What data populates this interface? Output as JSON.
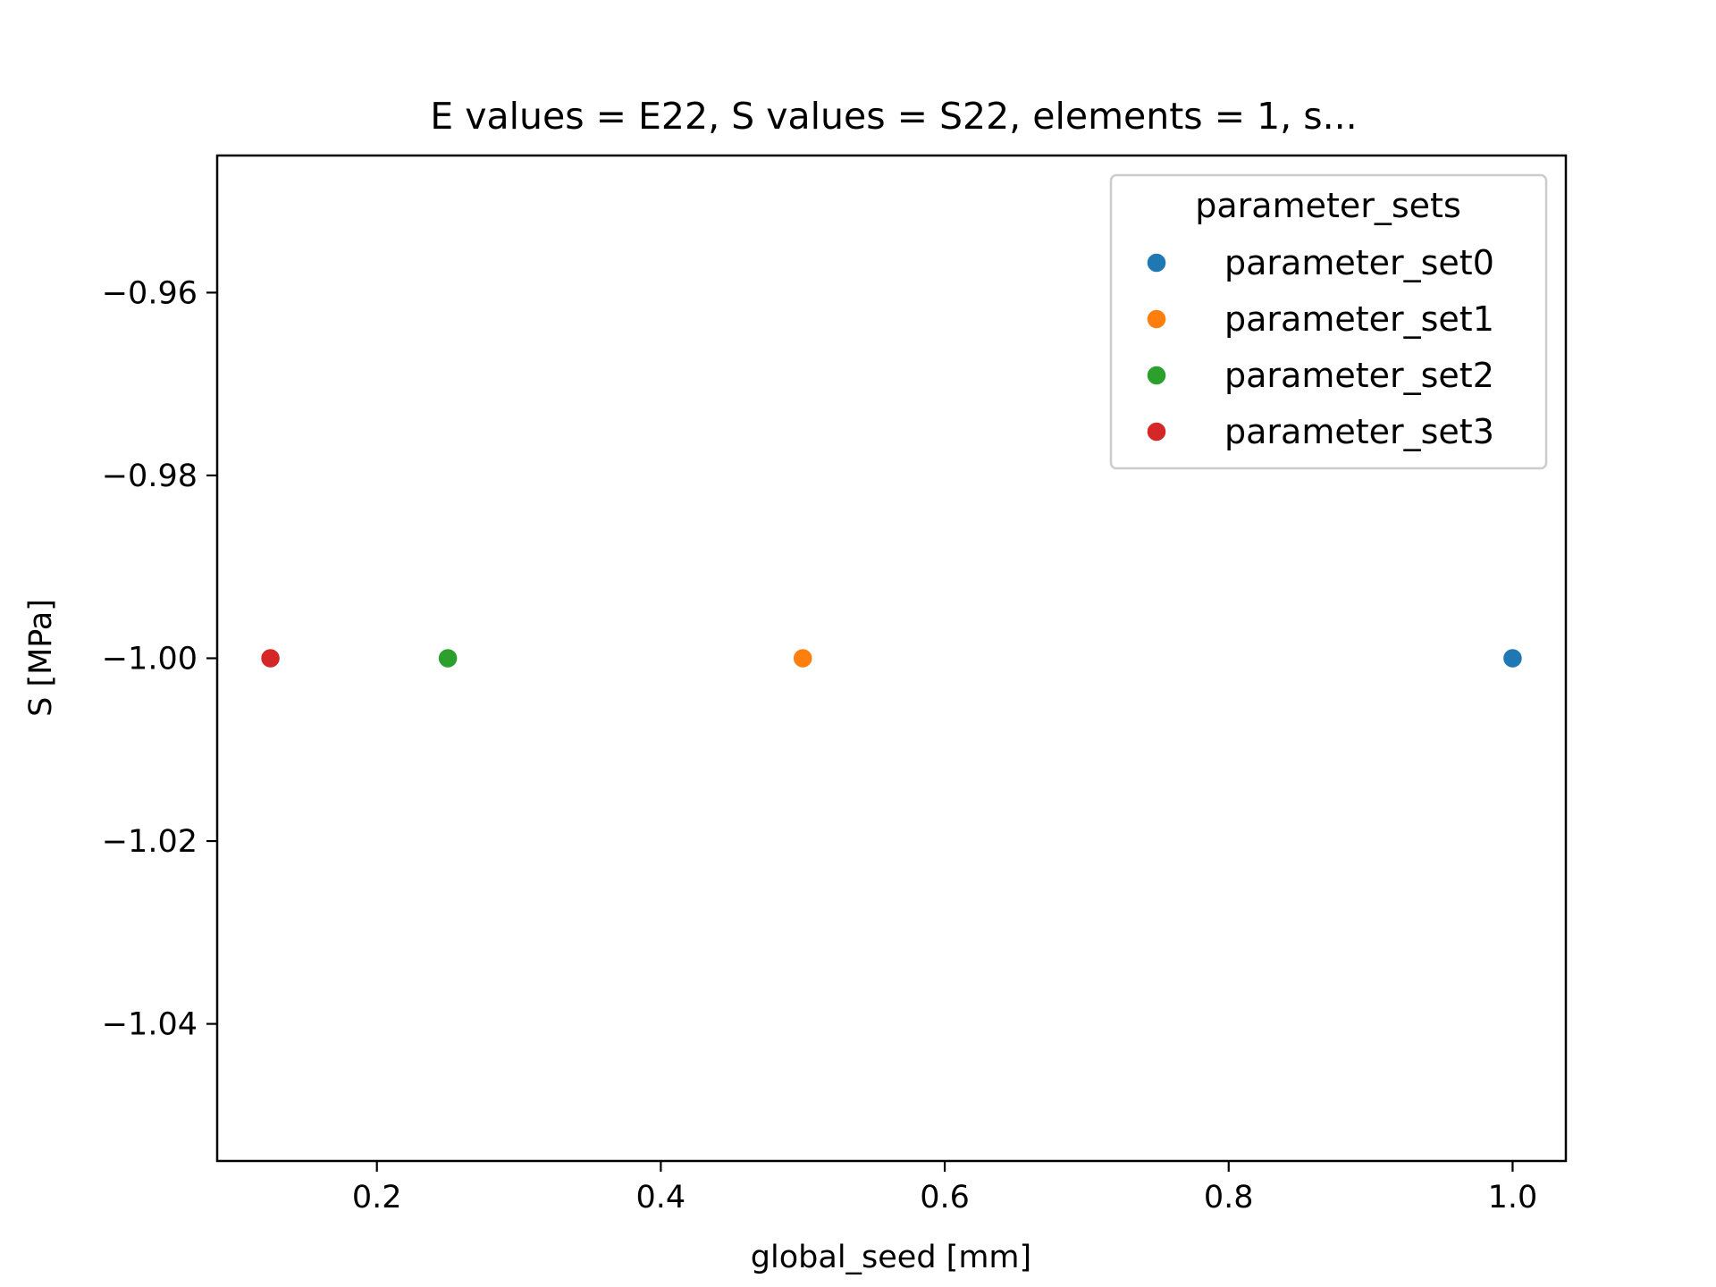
{
  "chart_data": {
    "type": "scatter",
    "title": "E values = E22, S values = S22, elements = 1, s...",
    "xlabel": "global_seed [mm]",
    "ylabel": "S [MPa]",
    "xlim": [
      0.0875,
      1.0375
    ],
    "ylim": [
      -1.055,
      -0.945
    ],
    "xticks": [
      0.2,
      0.4,
      0.6,
      0.8,
      1.0
    ],
    "xtick_labels": [
      "0.2",
      "0.4",
      "0.6",
      "0.8",
      "1.0"
    ],
    "yticks": [
      -0.96,
      -0.98,
      -1.0,
      -1.02,
      -1.04
    ],
    "ytick_labels": [
      "−0.96",
      "−0.98",
      "−1.00",
      "−1.02",
      "−1.04"
    ],
    "grid": false,
    "legend": {
      "title": "parameter_sets",
      "placement": "top-right"
    },
    "series": [
      {
        "name": "parameter_set0",
        "color": "#1f77b4",
        "x": [
          1.0
        ],
        "y": [
          -1.0
        ]
      },
      {
        "name": "parameter_set1",
        "color": "#ff7f0e",
        "x": [
          0.5
        ],
        "y": [
          -1.0
        ]
      },
      {
        "name": "parameter_set2",
        "color": "#2ca02c",
        "x": [
          0.25
        ],
        "y": [
          -1.0
        ]
      },
      {
        "name": "parameter_set3",
        "color": "#d62728",
        "x": [
          0.125
        ],
        "y": [
          -1.0
        ]
      }
    ]
  }
}
